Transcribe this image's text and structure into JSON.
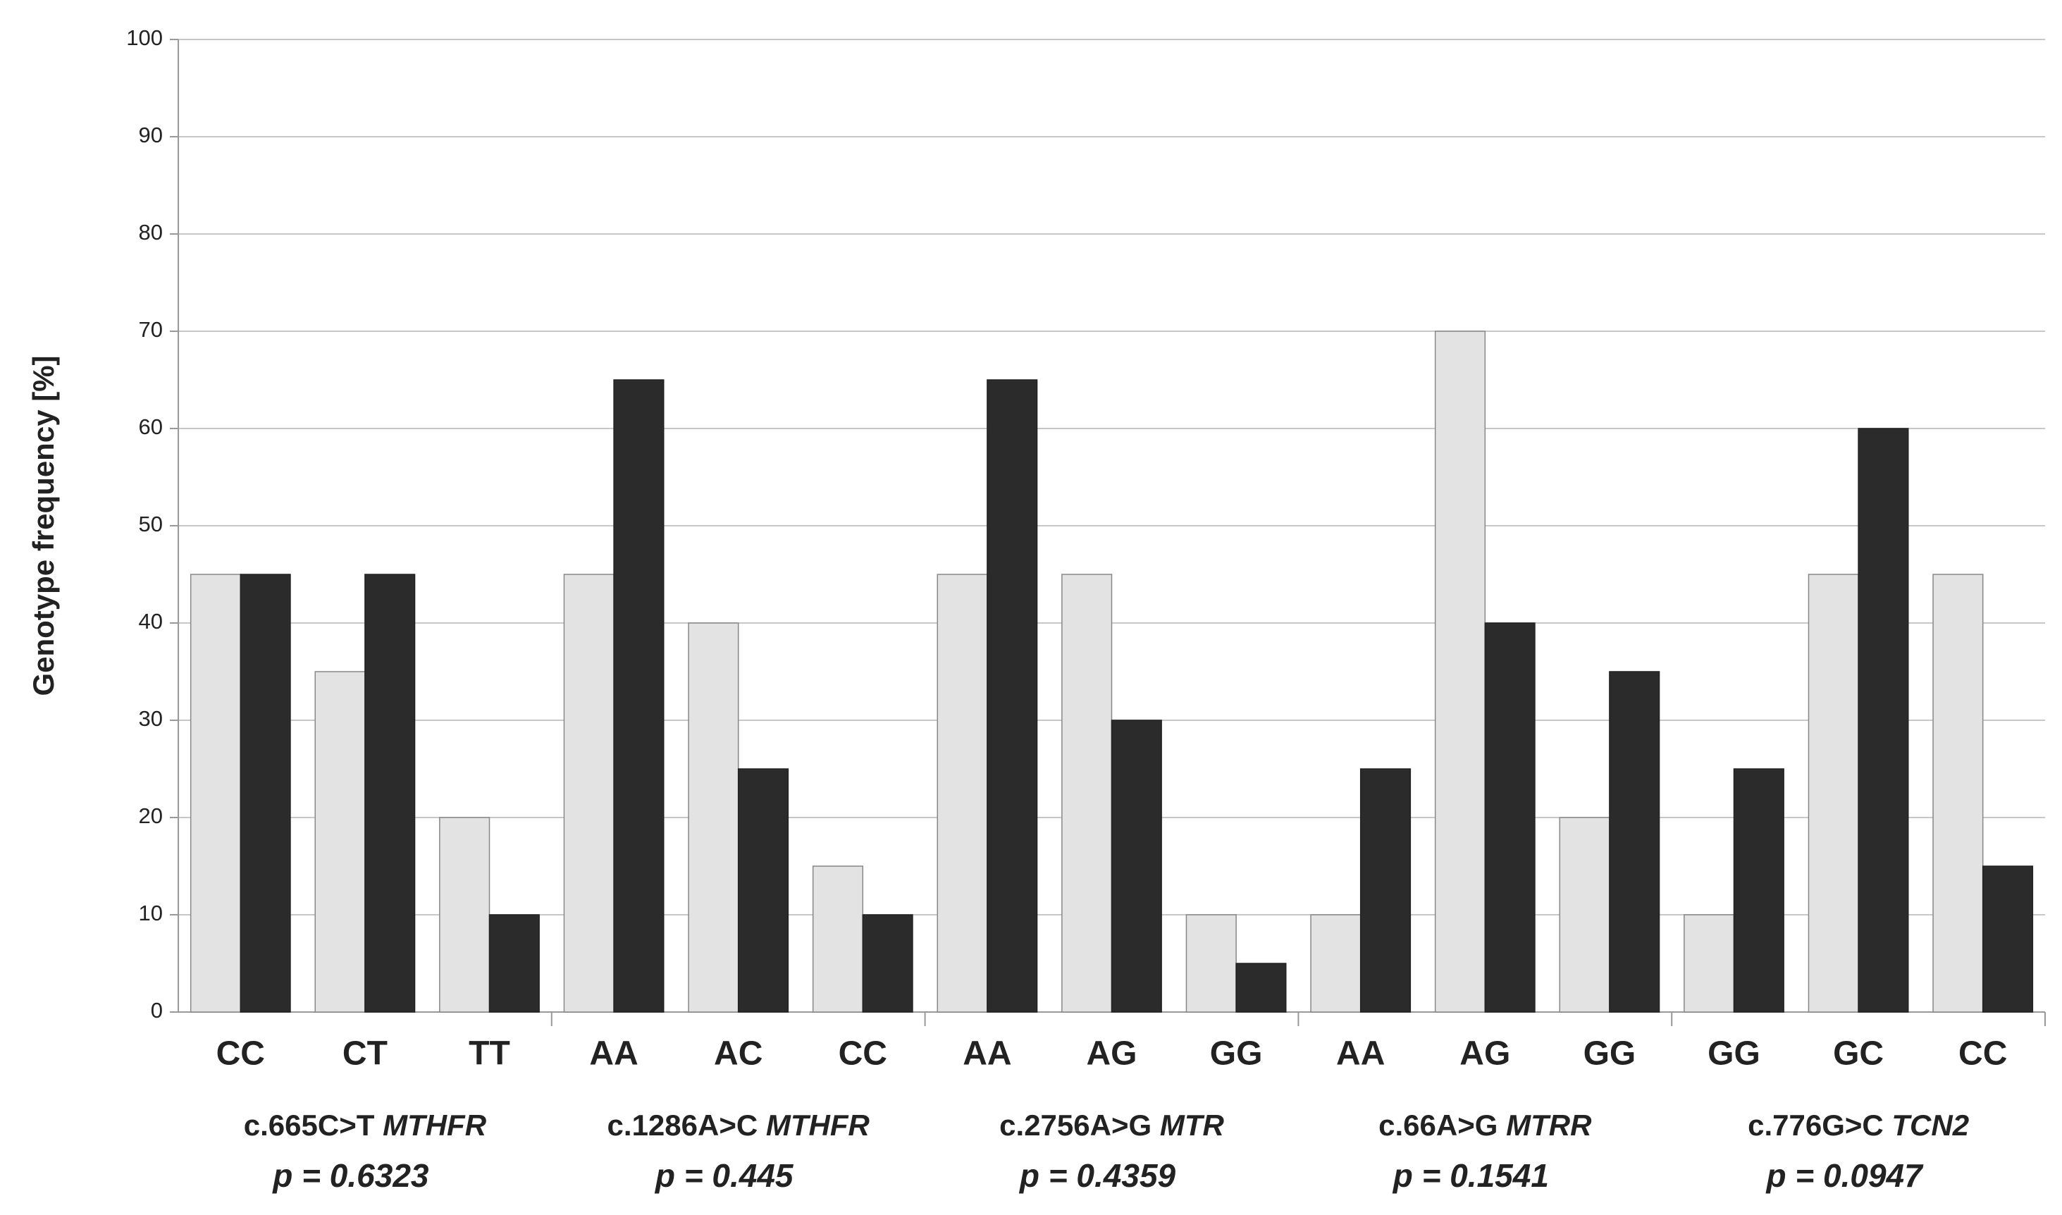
{
  "chart_data": {
    "type": "bar",
    "y_label": "Genotype frequency [%]",
    "categories": [
      "CC",
      "CT",
      "TT",
      "AA",
      "AC",
      "CC",
      "AA",
      "AG",
      "GG",
      "AA",
      "AG",
      "GG",
      "GG",
      "GC",
      "CC"
    ],
    "series": [
      {
        "color": "#e3e3e3",
        "values": [
          45,
          35,
          20,
          45,
          40,
          15,
          45,
          45,
          10,
          10,
          70,
          20,
          10,
          45,
          45
        ]
      },
      {
        "color": "#2b2b2b",
        "values": [
          45,
          45,
          10,
          65,
          25,
          10,
          65,
          30,
          5,
          25,
          40,
          35,
          25,
          60,
          15
        ]
      }
    ],
    "groups": [
      {
        "label": "c.665C>T",
        "gene": "MTHFR",
        "p": "p = 0.6323"
      },
      {
        "label": "c.1286A>C",
        "gene": "MTHFR",
        "p": "p = 0.445"
      },
      {
        "label": "c.2756A>G",
        "gene": "MTR",
        "p": "p = 0.4359"
      },
      {
        "label": "c.66A>G",
        "gene": "MTRR",
        "p": "p = 0.1541"
      },
      {
        "label": "c.776G>C",
        "gene": "TCN2",
        "p": "p = 0.0947"
      }
    ],
    "ylim": [
      0,
      100
    ],
    "yticks": [
      0,
      10,
      20,
      30,
      40,
      50,
      60,
      70,
      80,
      90,
      100
    ],
    "grid": true
  }
}
